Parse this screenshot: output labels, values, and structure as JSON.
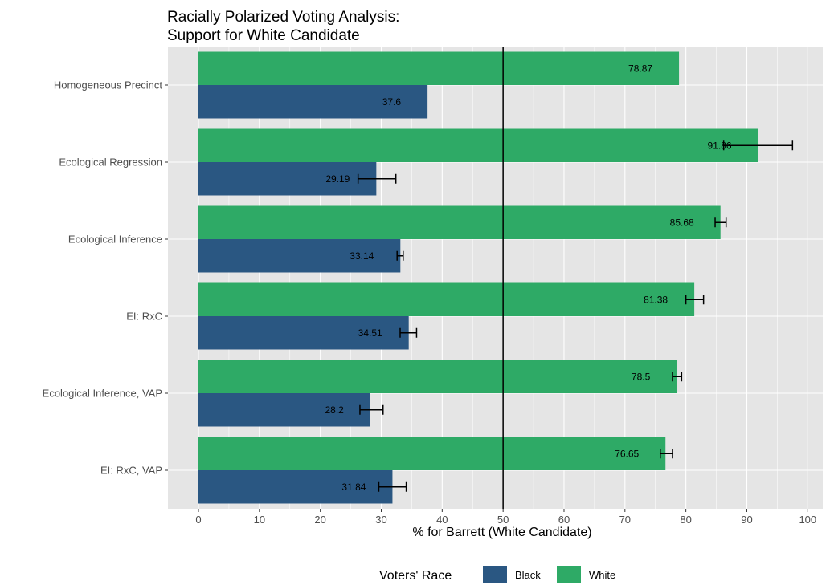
{
  "chart_data": {
    "type": "bar",
    "orientation": "horizontal",
    "title": "Racially Polarized Voting Analysis:",
    "subtitle": "Support for White Candidate",
    "xlabel": "% for Barrett (White Candidate)",
    "ylabel": "",
    "xlim": [
      0,
      100
    ],
    "x_ticks": [
      "0",
      "10",
      "20",
      "30",
      "40",
      "50",
      "60",
      "70",
      "80",
      "90",
      "100"
    ],
    "reference_line_x": 50,
    "grid": true,
    "categories": [
      "Homogeneous Precinct",
      "Ecological Regression",
      "Ecological Inference",
      "EI: RxC",
      "Ecological Inference, VAP",
      "EI: RxC, VAP"
    ],
    "series": [
      {
        "name": "White",
        "color": "#2eaa66",
        "values": [
          78.87,
          91.86,
          85.68,
          81.38,
          78.5,
          76.65
        ],
        "labels": [
          "78.87",
          "91.86",
          "85.68",
          "81.38",
          "78.5",
          "76.65"
        ],
        "error_low": [
          null,
          86.2,
          84.8,
          80.0,
          77.8,
          75.8
        ],
        "error_high": [
          null,
          97.5,
          86.6,
          82.9,
          79.3,
          77.8
        ]
      },
      {
        "name": "Black",
        "color": "#2a5782",
        "values": [
          37.6,
          29.19,
          33.14,
          34.51,
          28.2,
          31.84
        ],
        "labels": [
          "37.6",
          "29.19",
          "33.14",
          "34.51",
          "28.2",
          "31.84"
        ],
        "error_low": [
          null,
          26.2,
          32.6,
          33.1,
          26.5,
          29.6
        ],
        "error_high": [
          null,
          32.4,
          33.6,
          35.8,
          30.3,
          34.1
        ]
      }
    ],
    "legend": {
      "title": "Voters' Race",
      "position": "bottom",
      "entries": [
        "Black",
        "White"
      ]
    }
  }
}
